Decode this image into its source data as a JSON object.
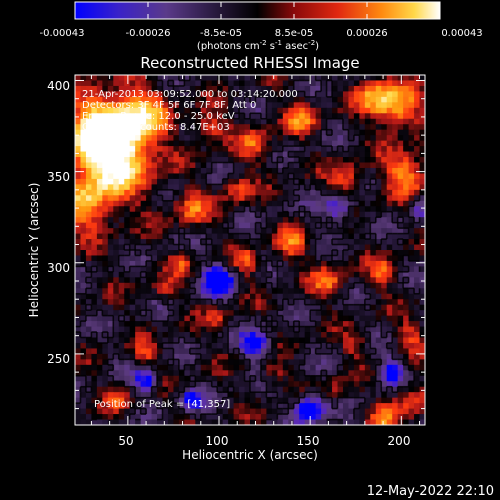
{
  "colorbar": {
    "ticks": [
      "-0.00043",
      "-0.00026",
      "-8.5e-05",
      "8.5e-05",
      "0.00026",
      "0.00043"
    ],
    "units_main": "(photons cm",
    "units_exp1": "-2",
    "units_mid": " s",
    "units_exp2": "-1",
    "units_end": " asec",
    "units_exp3": "-2",
    "units_close": ")"
  },
  "chart_data": {
    "type": "heatmap",
    "title": "Reconstructed RHESSI Image",
    "xlabel": "Heliocentric X (arcsec)",
    "ylabel": "Heliocentric Y (arcsec)",
    "xlim": [
      21,
      213
    ],
    "ylim": [
      211,
      403
    ],
    "xticks": [
      "50",
      "100",
      "150",
      "200"
    ],
    "yticks": [
      "250",
      "300",
      "350",
      "400"
    ],
    "zlim": [
      -0.00043,
      0.00043
    ],
    "colormap": [
      "#0000ff",
      "#5b2ab8",
      "#5a3a7a",
      "#2a1a40",
      "#000000",
      "#b01818",
      "#ff3b10",
      "#ff9a10",
      "#ffd84a",
      "#ffffff"
    ],
    "annotations": [
      "21-Apr-2013 03:09:52.000 to 03:14:20.000",
      "Detectors: 3F 4F 5F 6F 7F 8F, Att 0",
      "Energy Range: 12.0 - 25.0 keV",
      "Clean   Total counts: 8.47E+03"
    ],
    "peak_label": "Position of Peak = [41,357]",
    "peak": [
      41,
      357
    ]
  },
  "footer": {
    "timestamp": "12-May-2022 22:10"
  }
}
